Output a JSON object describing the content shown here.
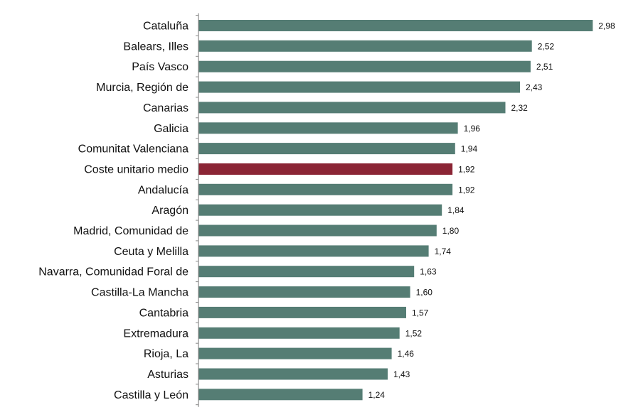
{
  "chart_data": {
    "type": "bar",
    "orientation": "horizontal",
    "categories": [
      "Cataluña",
      "Balears, Illes",
      "País Vasco",
      "Murcia, Región de",
      "Canarias",
      "Galicia",
      "Comunitat Valenciana",
      "Coste unitario medio",
      "Andalucía",
      "Aragón",
      "Madrid, Comunidad de",
      "Ceuta y Melilla",
      "Navarra, Comunidad Foral de",
      "Castilla-La Mancha",
      "Cantabria",
      "Extremadura",
      "Rioja, La",
      "Asturias",
      "Castilla y León"
    ],
    "values": [
      2.98,
      2.52,
      2.51,
      2.43,
      2.32,
      1.96,
      1.94,
      1.92,
      1.92,
      1.84,
      1.8,
      1.74,
      1.63,
      1.6,
      1.57,
      1.52,
      1.46,
      1.43,
      1.24
    ],
    "value_labels": [
      "2,98",
      "2,52",
      "2,51",
      "2,43",
      "2,32",
      "1,96",
      "1,94",
      "1,92",
      "1,92",
      "1,84",
      "1,80",
      "1,74",
      "1,63",
      "1,60",
      "1,57",
      "1,52",
      "1,46",
      "1,43",
      "1,24"
    ],
    "highlight_category": "Coste unitario medio",
    "colors": {
      "bar": "#557d74",
      "highlight": "#8b2535",
      "axis": "#888888"
    },
    "title": "",
    "xlabel": "",
    "ylabel": "",
    "xlim": [
      0,
      3.0
    ],
    "grid": false,
    "legend": "none"
  }
}
